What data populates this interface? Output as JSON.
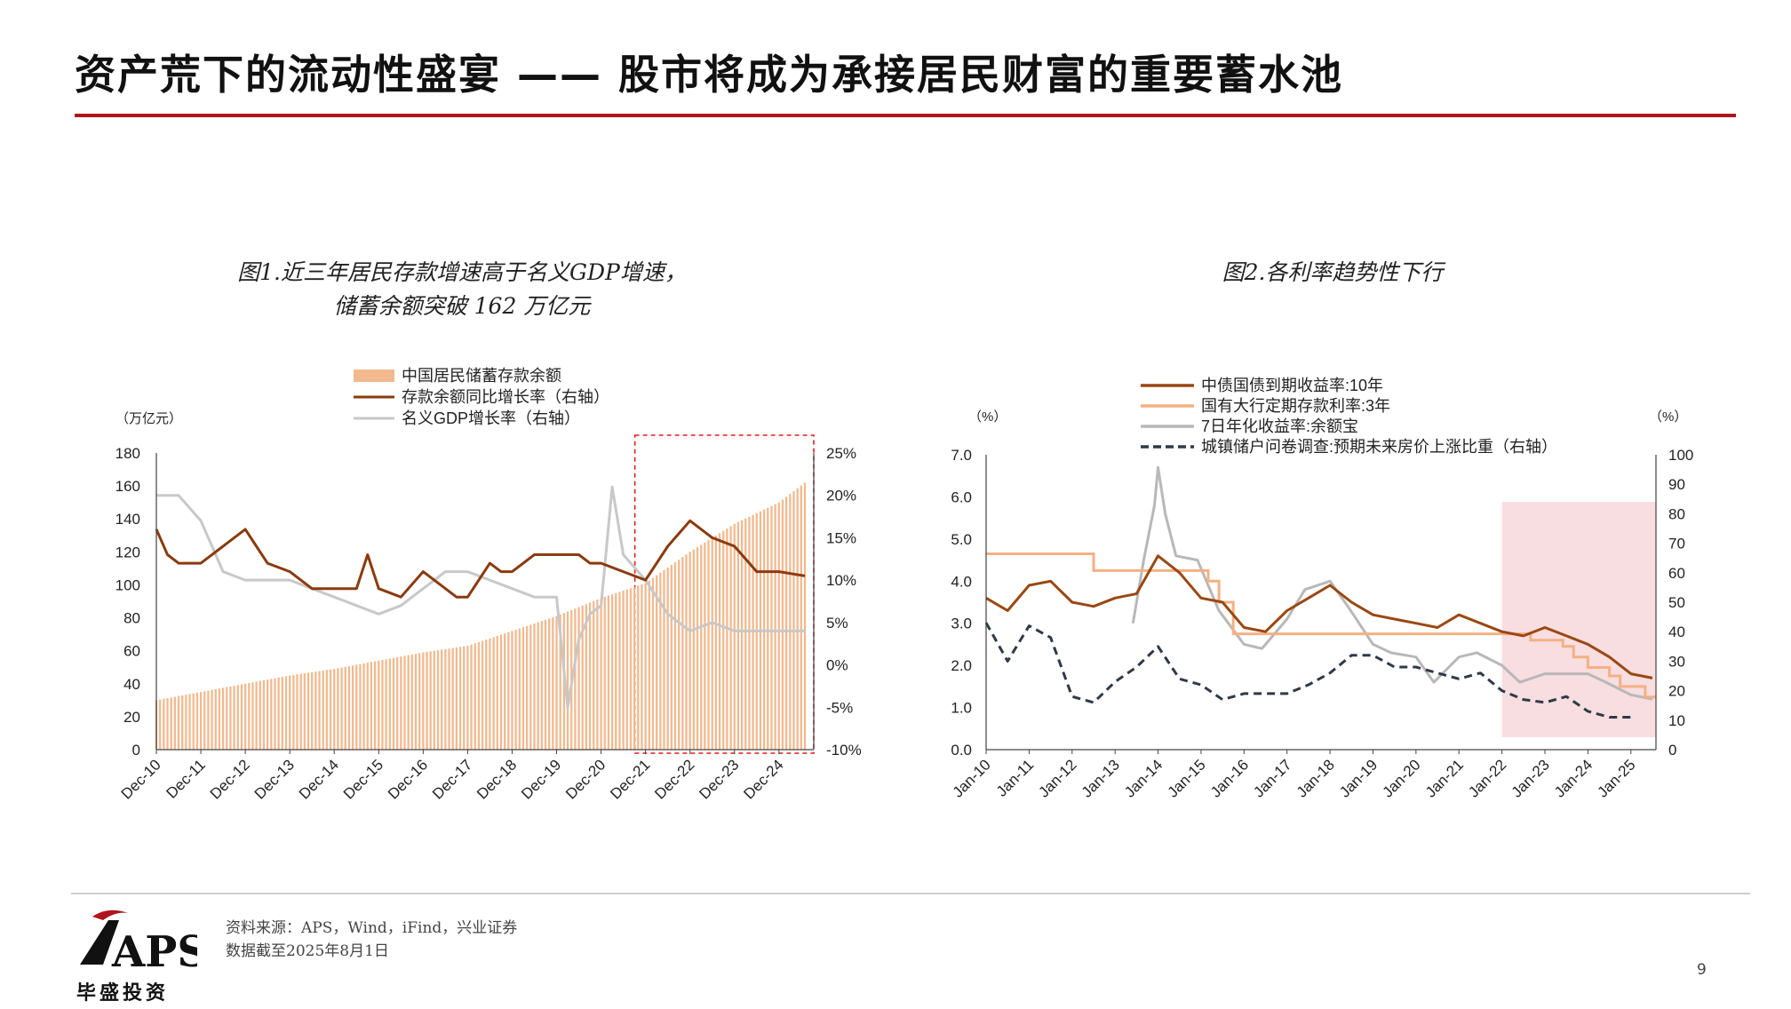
{
  "page": {
    "title": "资产荒下的流动性盛宴 —— 股市将成为承接居民财富的重要蓄水池",
    "source_line1": "资料来源：APS，Wind，iFind，兴业证券",
    "source_line2": "数据截至2025年8月1日",
    "page_number": "9",
    "logo_text": "APS",
    "logo_subtext": "毕盛投资",
    "accent_color": "#b0141d"
  },
  "chart_data": [
    {
      "type": "bar+line",
      "title_line1": "图1.近三年居民存款增速高于名义GDP增速，",
      "title_line2": "储蓄余额突破 162 万亿元",
      "left_unit": "（万亿元）",
      "ylim_left": [
        0,
        180
      ],
      "yticks_left": [
        "0",
        "20",
        "40",
        "60",
        "80",
        "100",
        "120",
        "140",
        "160",
        "180"
      ],
      "ylim_right": [
        -10,
        25
      ],
      "yticks_right": [
        "-10%",
        "-5%",
        "0%",
        "5%",
        "10%",
        "15%",
        "20%",
        "25%"
      ],
      "x_ticks": [
        "Dec-10",
        "Dec-11",
        "Dec-12",
        "Dec-13",
        "Dec-14",
        "Dec-15",
        "Dec-16",
        "Dec-17",
        "Dec-18",
        "Dec-19",
        "Dec-20",
        "Dec-21",
        "Dec-22",
        "Dec-23",
        "Dec-24"
      ],
      "grid": false,
      "legend_position": "top",
      "highlight_box": {
        "from": "Dec-21",
        "to": "end",
        "style": "red dashed"
      },
      "series": [
        {
          "name": "中国居民储蓄存款余额",
          "kind": "bar",
          "axis": "left",
          "color": "#f2b98e",
          "x": [
            "Dec-10",
            "Dec-11",
            "Dec-12",
            "Dec-13",
            "Dec-14",
            "Dec-15",
            "Dec-16",
            "Dec-17",
            "Dec-18",
            "Dec-19",
            "Dec-20",
            "Dec-21",
            "Dec-22",
            "Dec-23",
            "Dec-24",
            "Jul-25"
          ],
          "values": [
            30,
            35,
            40,
            45,
            49,
            54,
            59,
            63,
            72,
            81,
            92,
            101,
            120,
            137,
            150,
            162
          ]
        },
        {
          "name": "存款余额同比增长率（右轴）",
          "kind": "line",
          "axis": "right",
          "color": "#8b3a0e",
          "x": [
            "Dec-10",
            "Mar-11",
            "Jun-11",
            "Dec-11",
            "Jun-12",
            "Dec-12",
            "Mar-13",
            "Jun-13",
            "Dec-13",
            "Jun-14",
            "Dec-14",
            "Jun-15",
            "Sep-15",
            "Dec-15",
            "Jun-16",
            "Dec-16",
            "Jun-17",
            "Sep-17",
            "Dec-17",
            "Jun-18",
            "Sep-18",
            "Dec-18",
            "Jun-19",
            "Dec-19",
            "Jun-20",
            "Sep-20",
            "Dec-20",
            "Jun-21",
            "Dec-21",
            "Jun-22",
            "Dec-22",
            "Jun-23",
            "Dec-23",
            "Jun-24",
            "Dec-24",
            "Jul-25"
          ],
          "values": [
            16,
            13,
            12,
            12,
            14,
            16,
            14,
            12,
            11,
            9,
            9,
            9,
            13,
            9,
            8,
            11,
            9,
            8,
            8,
            12,
            11,
            11,
            13,
            13,
            13,
            12,
            12,
            11,
            10,
            14,
            17,
            15,
            14,
            11,
            11,
            10.5
          ]
        },
        {
          "name": "名义GDP增长率（右轴）",
          "kind": "line",
          "axis": "right",
          "color": "#c8c8c8",
          "x": [
            "Dec-10",
            "Jun-11",
            "Dec-11",
            "Jun-12",
            "Dec-12",
            "Jun-13",
            "Dec-13",
            "Jun-14",
            "Dec-14",
            "Jun-15",
            "Dec-15",
            "Jun-16",
            "Dec-16",
            "Jun-17",
            "Dec-17",
            "Jun-18",
            "Dec-18",
            "Jun-19",
            "Dec-19",
            "Mar-20",
            "Jun-20",
            "Sep-20",
            "Dec-20",
            "Mar-21",
            "Jun-21",
            "Dec-21",
            "Jun-22",
            "Dec-22",
            "Jun-23",
            "Dec-23",
            "Jun-24",
            "Dec-24",
            "Jul-25"
          ],
          "values": [
            20,
            20,
            17,
            11,
            10,
            10,
            10,
            9,
            8,
            7,
            6,
            7,
            9,
            11,
            11,
            10,
            9,
            8,
            8,
            -5,
            3,
            6,
            7,
            21,
            13,
            10,
            6,
            4,
            5,
            4,
            4,
            4,
            4
          ]
        }
      ]
    },
    {
      "type": "line",
      "title": "图2.各利率趋势性下行",
      "left_unit": "（%）",
      "right_unit": "（%）",
      "ylim_left": [
        0,
        7
      ],
      "yticks_left": [
        "0.0",
        "1.0",
        "2.0",
        "3.0",
        "4.0",
        "5.0",
        "6.0",
        "7.0"
      ],
      "ylim_right": [
        0,
        100
      ],
      "yticks_right": [
        "0",
        "10",
        "20",
        "30",
        "40",
        "50",
        "60",
        "70",
        "80",
        "90",
        "100"
      ],
      "x_ticks": [
        "Jan-10",
        "Jan-11",
        "Jan-12",
        "Jan-13",
        "Jan-14",
        "Jan-15",
        "Jan-16",
        "Jan-17",
        "Jan-18",
        "Jan-19",
        "Jan-20",
        "Jan-21",
        "Jan-22",
        "Jan-23",
        "Jan-24",
        "Jan-25"
      ],
      "grid": false,
      "legend_position": "top",
      "highlight_box": {
        "from": "Jan-22",
        "to": "end",
        "style": "pink shaded"
      },
      "series": [
        {
          "name": "中债国债到期收益率:10年",
          "axis": "left",
          "color": "#9a4812",
          "x": [
            "Jan-10",
            "Jul-10",
            "Jan-11",
            "Jul-11",
            "Jan-12",
            "Jul-12",
            "Jan-13",
            "Jul-13",
            "Jan-14",
            "Jul-14",
            "Jan-15",
            "Jul-15",
            "Jan-16",
            "Jul-16",
            "Jan-17",
            "Jul-17",
            "Jan-18",
            "Jul-18",
            "Jan-19",
            "Jul-19",
            "Jan-20",
            "Jul-20",
            "Jan-21",
            "Jul-21",
            "Jan-22",
            "Jul-22",
            "Jan-23",
            "Jul-23",
            "Jan-24",
            "Jul-24",
            "Jan-25",
            "Jul-25"
          ],
          "values": [
            3.6,
            3.3,
            3.9,
            4.0,
            3.5,
            3.4,
            3.6,
            3.7,
            4.6,
            4.2,
            3.6,
            3.5,
            2.9,
            2.8,
            3.3,
            3.6,
            3.9,
            3.5,
            3.2,
            3.1,
            3.0,
            2.9,
            3.2,
            3.0,
            2.8,
            2.7,
            2.9,
            2.7,
            2.5,
            2.2,
            1.8,
            1.7
          ]
        },
        {
          "name": "国有大行定期存款利率:3年",
          "axis": "left",
          "color": "#f4b183",
          "x": [
            "Jan-10",
            "Jan-11",
            "Jul-11",
            "Jan-12",
            "Jul-12",
            "Jan-13",
            "Jan-14",
            "Mar-15",
            "Jun-15",
            "Oct-15",
            "Jan-16",
            "Jan-17",
            "Jan-18",
            "Jan-19",
            "Jan-20",
            "Jan-21",
            "Jan-22",
            "Sep-22",
            "Jun-23",
            "Sep-23",
            "Jan-24",
            "Jul-24",
            "Oct-24",
            "May-25"
          ],
          "values": [
            4.65,
            4.65,
            4.65,
            4.65,
            4.25,
            4.25,
            4.25,
            4.0,
            3.5,
            2.75,
            2.75,
            2.75,
            2.75,
            2.75,
            2.75,
            2.75,
            2.75,
            2.6,
            2.45,
            2.2,
            1.95,
            1.75,
            1.5,
            1.25
          ]
        },
        {
          "name": "7日年化收益率:余额宝",
          "axis": "left",
          "color": "#b8b8b8",
          "x": [
            "Jun-13",
            "Sep-13",
            "Dec-13",
            "Jan-14",
            "Mar-14",
            "Jun-14",
            "Dec-14",
            "Jun-15",
            "Jan-16",
            "Jun-16",
            "Jan-17",
            "Jun-17",
            "Jan-18",
            "Jun-18",
            "Jan-19",
            "Jun-19",
            "Jan-20",
            "Jun-20",
            "Jan-21",
            "Jun-21",
            "Jan-22",
            "Jun-22",
            "Jan-23",
            "Jun-23",
            "Jan-24",
            "Jun-24",
            "Jan-25",
            "Jul-25"
          ],
          "values": [
            3.0,
            4.5,
            5.8,
            6.7,
            5.6,
            4.6,
            4.5,
            3.3,
            2.5,
            2.4,
            3.1,
            3.8,
            4.0,
            3.4,
            2.5,
            2.3,
            2.2,
            1.6,
            2.2,
            2.3,
            2.0,
            1.6,
            1.8,
            1.8,
            1.8,
            1.6,
            1.3,
            1.2
          ]
        },
        {
          "name": "城镇储户问卷调查:预期未来房价上涨比重（右轴）",
          "axis": "right",
          "color": "#2e3a48",
          "dashed": true,
          "x": [
            "Jan-10",
            "Jul-10",
            "Jan-11",
            "Jul-11",
            "Jan-12",
            "Jul-12",
            "Jan-13",
            "Jul-13",
            "Jan-14",
            "Jul-14",
            "Jan-15",
            "Jul-15",
            "Jan-16",
            "Jul-16",
            "Jan-17",
            "Jul-17",
            "Jan-18",
            "Jul-18",
            "Jan-19",
            "Jul-19",
            "Jan-20",
            "Jul-20",
            "Jan-21",
            "Jul-21",
            "Jan-22",
            "Jul-22",
            "Jan-23",
            "Jul-23",
            "Jan-24",
            "Jul-24",
            "Jan-25"
          ],
          "values": [
            43,
            30,
            42,
            38,
            18,
            16,
            23,
            28,
            35,
            24,
            22,
            17,
            19,
            19,
            19,
            22,
            26,
            32,
            32,
            28,
            28,
            26,
            24,
            26,
            20,
            17,
            16,
            18,
            13,
            11,
            11
          ]
        }
      ]
    }
  ]
}
